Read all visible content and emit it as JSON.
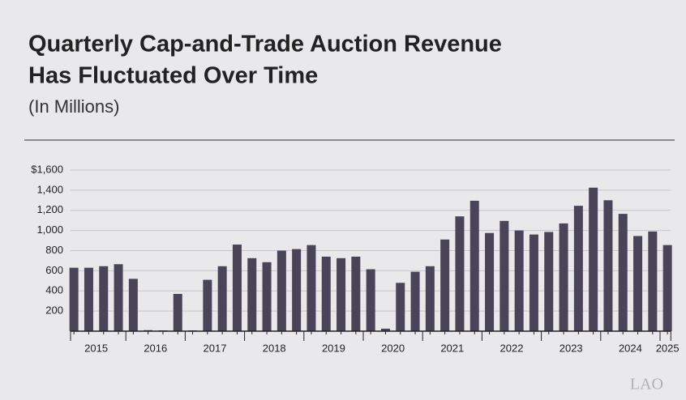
{
  "chart_data": {
    "type": "bar",
    "title_lines": [
      "Quarterly Cap-and-Trade Auction Revenue",
      "Has Fluctuated Over Time"
    ],
    "subtitle": "(In Millions)",
    "years": [
      "2015",
      "2016",
      "2017",
      "2018",
      "2019",
      "2020",
      "2021",
      "2022",
      "2023",
      "2024",
      "2025"
    ],
    "values": [
      630,
      630,
      645,
      665,
      520,
      10,
      8,
      370,
      8,
      510,
      645,
      860,
      725,
      685,
      800,
      815,
      855,
      740,
      725,
      740,
      615,
      25,
      480,
      590,
      645,
      910,
      1140,
      1295,
      975,
      1095,
      1000,
      960,
      985,
      1070,
      1245,
      1425,
      1300,
      1165,
      945,
      990,
      855
    ],
    "color": "#4a4458",
    "ylim": [
      0,
      1600
    ],
    "yticks": [
      200,
      400,
      600,
      800,
      {
        "value": 1000,
        "label": "1,000"
      },
      {
        "value": 1200,
        "label": "1,200"
      },
      {
        "value": 1400,
        "label": "1,400"
      },
      {
        "value": 1600,
        "label": "$1,600"
      }
    ],
    "grid": true,
    "logo": "LAO"
  }
}
